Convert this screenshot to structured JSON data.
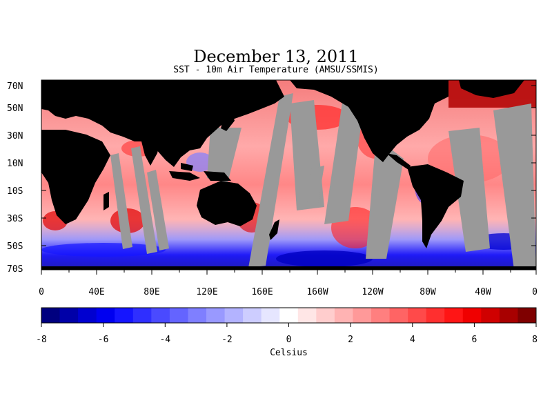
{
  "figure": {
    "title": "December 13, 2011",
    "subtitle": "SST - 10m Air Temperature (AMSU/SSMIS)"
  },
  "map": {
    "lat_labels": [
      "70N",
      "50N",
      "30N",
      "10N",
      "10S",
      "30S",
      "50S",
      "70S"
    ],
    "lon_labels": [
      "0",
      "40E",
      "80E",
      "120E",
      "160E",
      "160W",
      "120W",
      "80W",
      "40W",
      "0"
    ],
    "colors": {
      "land": "#000000",
      "no_data": "#999999"
    }
  },
  "colorbar": {
    "unit_label": "Celsius",
    "tick_labels": [
      "-8",
      "-6",
      "-4",
      "-2",
      "0",
      "2",
      "4",
      "6",
      "8"
    ],
    "range": [
      -8,
      8
    ],
    "colors": [
      "#00007f",
      "#0000a8",
      "#0000d0",
      "#0000f0",
      "#1515ff",
      "#2f2fff",
      "#4a4aff",
      "#6464ff",
      "#7f7fff",
      "#9999ff",
      "#b3b3ff",
      "#cdcdff",
      "#e6e6ff",
      "#ffffff",
      "#ffe6e6",
      "#ffcdcd",
      "#ffb3b3",
      "#ff9999",
      "#ff7f7f",
      "#ff6464",
      "#ff4a4a",
      "#ff2f2f",
      "#ff1515",
      "#f00000",
      "#d00000",
      "#a80000",
      "#7f0000"
    ]
  }
}
